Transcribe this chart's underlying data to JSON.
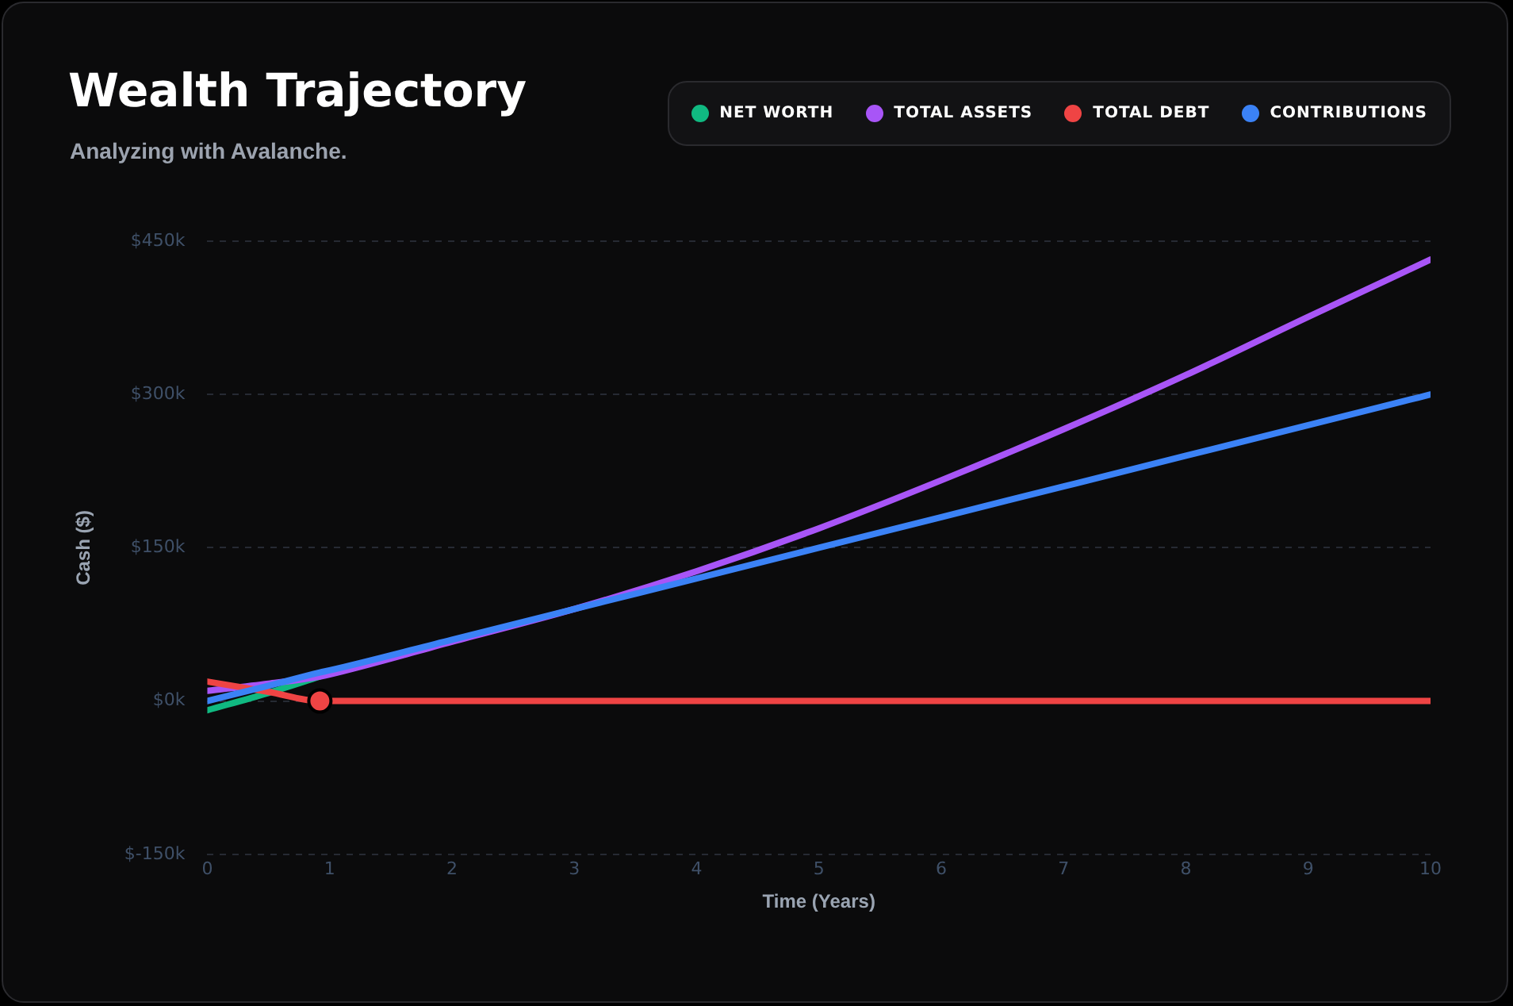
{
  "chart_data": {
    "type": "line",
    "title": "Wealth Trajectory",
    "subtitle": "Analyzing with Avalanche.",
    "xlabel": "Time (Years)",
    "ylabel": "Cash ($)",
    "x": [
      0,
      0.5,
      0.92,
      1,
      2,
      3,
      4,
      5,
      6,
      7,
      8,
      9,
      10
    ],
    "series": [
      {
        "name": "NET WORTH",
        "color": "#10b981",
        "values": [
          -9,
          8,
          24,
          null,
          null,
          null,
          null,
          null,
          null,
          null,
          null,
          null,
          null
        ]
      },
      {
        "name": "TOTAL ASSETS",
        "color": "#a855f7",
        "values": [
          10,
          17,
          24,
          26,
          58,
          90,
          127,
          169,
          216,
          266,
          319,
          376,
          432
        ]
      },
      {
        "name": "TOTAL DEBT",
        "color": "#ef4444",
        "values": [
          19,
          9,
          0,
          0,
          0,
          0,
          0,
          0,
          0,
          0,
          0,
          0,
          0
        ]
      },
      {
        "name": "CONTRIBUTIONS",
        "color": "#3b82f6",
        "values": [
          0,
          15,
          28,
          30,
          60,
          90,
          120,
          150,
          180,
          210,
          240,
          270,
          300
        ]
      },
      {
        "type": "scatter",
        "color": "#ef4444",
        "x": [
          0.92
        ],
        "values": [
          0
        ],
        "marker": "circle"
      }
    ],
    "xlim": [
      0,
      10
    ],
    "xticks": [
      0,
      1,
      2,
      3,
      4,
      5,
      6,
      7,
      8,
      9,
      10
    ],
    "ylim": [
      -150,
      450
    ],
    "yticks": [
      {
        "value": -150,
        "label": "$-150k"
      },
      {
        "value": 0,
        "label": "$0k"
      },
      {
        "value": 150,
        "label": "$150k"
      },
      {
        "value": 300,
        "label": "$300k"
      },
      {
        "value": 450,
        "label": "$450k"
      }
    ],
    "grid": "y",
    "legend": "top right",
    "marker": "none",
    "line_style": "solid"
  }
}
